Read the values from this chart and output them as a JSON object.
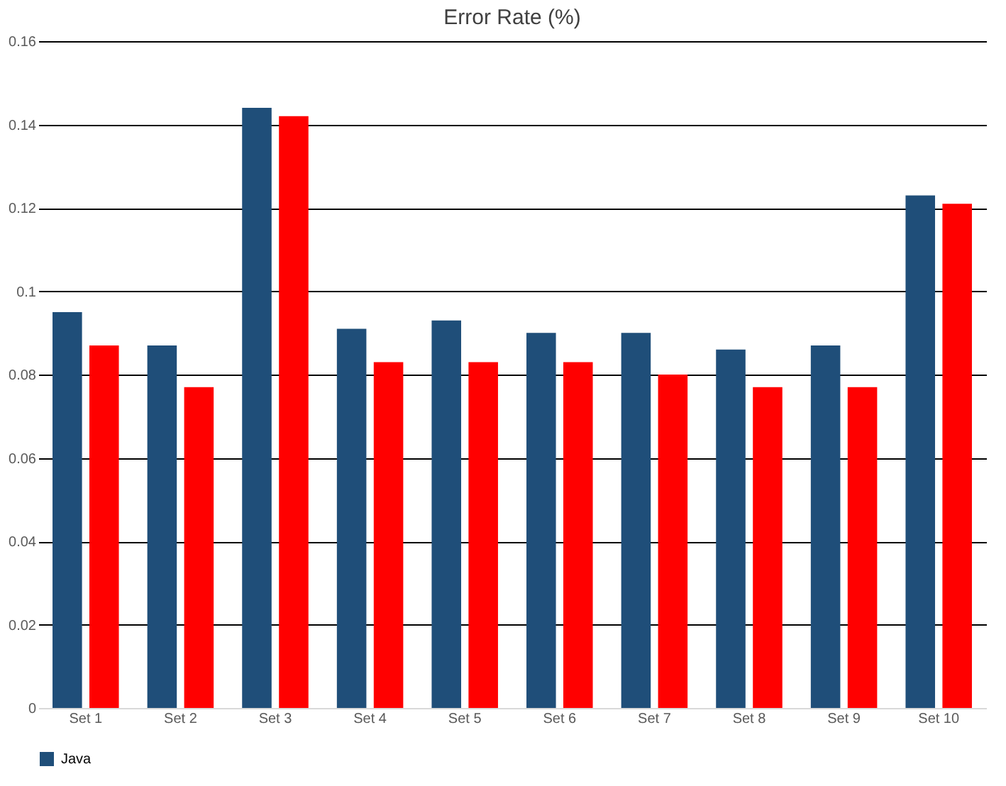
{
  "chart_data": {
    "type": "bar",
    "title": "Error Rate (%)",
    "categories": [
      "Set 1",
      "Set 2",
      "Set 3",
      "Set 4",
      "Set 5",
      "Set 6",
      "Set 7",
      "Set 8",
      "Set 9",
      "Set 10"
    ],
    "series": [
      {
        "name": "Java",
        "color": "#1f4e79",
        "values": [
          0.095,
          0.087,
          0.144,
          0.091,
          0.093,
          0.09,
          0.09,
          0.086,
          0.087,
          0.123
        ]
      },
      {
        "color": "#ff0000",
        "values": [
          0.087,
          0.077,
          0.142,
          0.083,
          0.083,
          0.083,
          0.08,
          0.077,
          0.077,
          0.121
        ]
      }
    ],
    "ylim": [
      0,
      0.16
    ],
    "yticks": [
      0,
      0.02,
      0.04,
      0.06,
      0.08,
      0.1,
      0.12,
      0.14,
      0.16
    ],
    "grid": "y",
    "legend": "bottom"
  }
}
